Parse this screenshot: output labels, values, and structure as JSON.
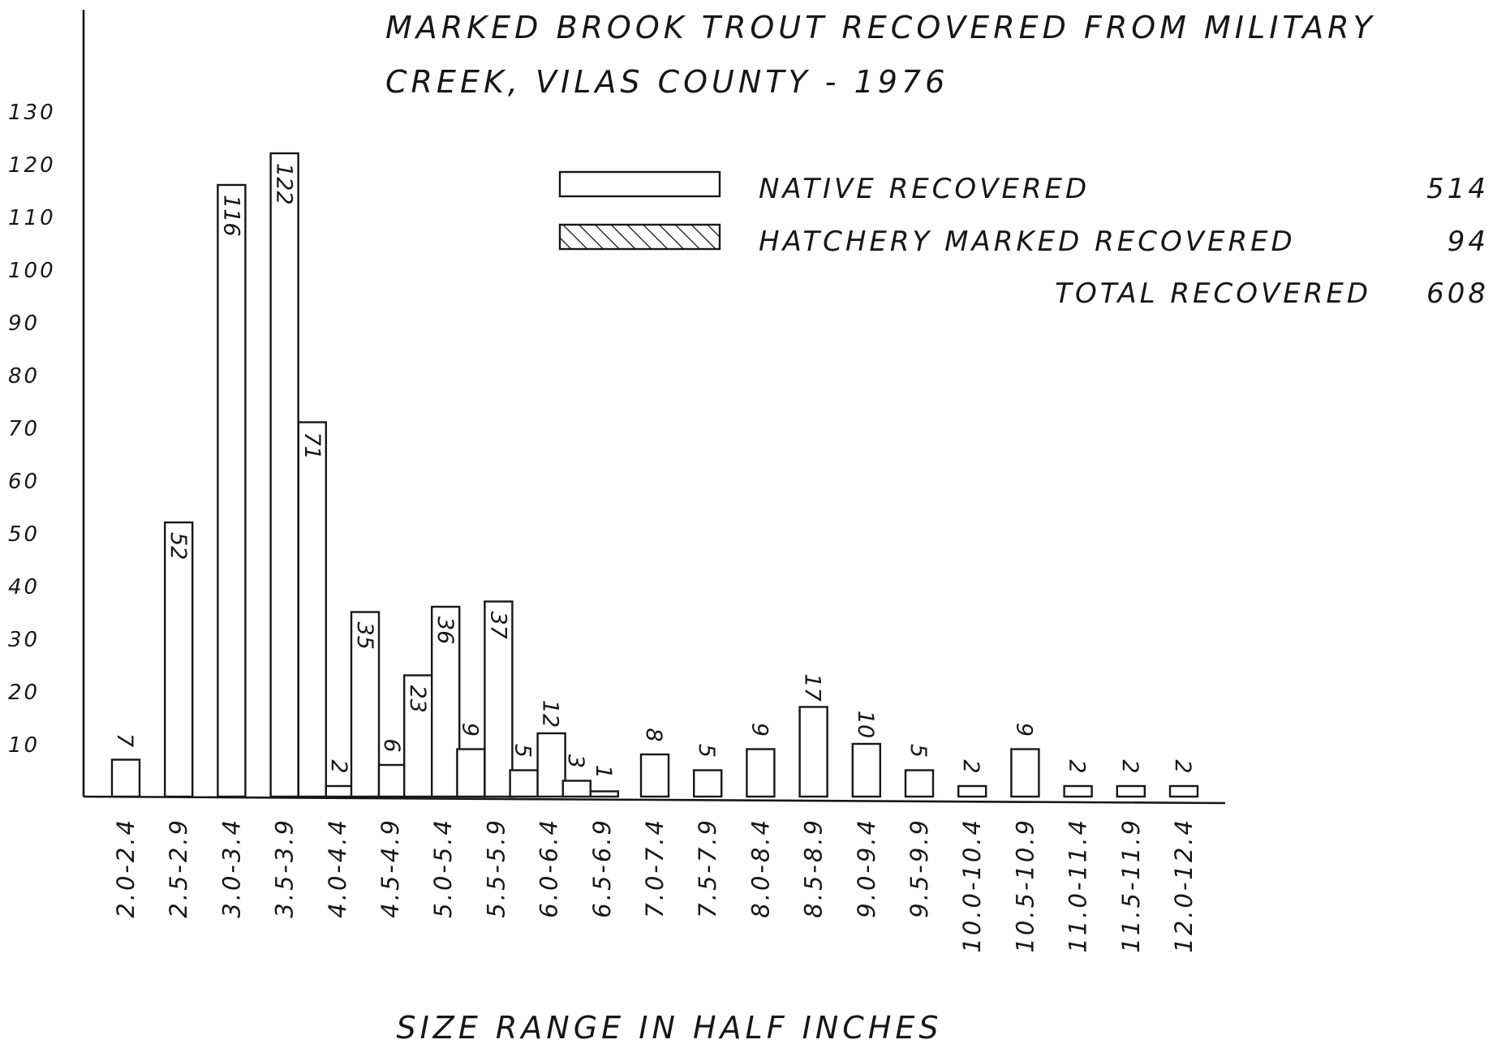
{
  "chart_data": {
    "type": "bar",
    "title_line1": "MARKED BROOK TROUT RECOVERED FROM MILITARY",
    "title_line2": "CREEK, VILAS COUNTY - 1976",
    "xlabel": "SIZE RANGE IN HALF INCHES",
    "ylabel": "",
    "ylim": [
      0,
      130
    ],
    "y_ticks": [
      "10",
      "20",
      "30",
      "40",
      "50",
      "60",
      "70",
      "80",
      "90",
      "100",
      "110",
      "120",
      "130"
    ],
    "categories": [
      "2.0-2.4",
      "2.5-2.9",
      "3.0-3.4",
      "3.5-3.9",
      "4.0-4.4",
      "4.5-4.9",
      "5.0-5.4",
      "5.5-5.9",
      "6.0-6.4",
      "6.5-6.9",
      "7.0-7.4",
      "7.5-7.9",
      "8.0-8.4",
      "8.5-8.9",
      "9.0-9.4",
      "9.5-9.9",
      "10.0-10.4",
      "10.5-10.9",
      "11.0-11.4",
      "11.5-11.9",
      "12.0-12.4"
    ],
    "series": [
      {
        "name": "NATIVE RECOVERED",
        "total": "514",
        "pattern": "plain",
        "values": [
          7,
          52,
          116,
          122,
          71,
          35,
          23,
          9,
          5,
          3,
          8,
          5,
          9,
          17,
          10,
          5,
          2,
          9,
          2,
          2,
          2
        ]
      },
      {
        "name": "HATCHERY MARKED RECOVERED",
        "total": "94",
        "pattern": "hatched",
        "values": [
          null,
          null,
          null,
          null,
          2,
          6,
          36,
          37,
          12,
          1,
          null,
          null,
          null,
          null,
          null,
          null,
          null,
          null,
          null,
          null,
          null
        ]
      }
    ],
    "total_label": "TOTAL RECOVERED",
    "total_value": "608",
    "grid": false,
    "legend_position": "top-right",
    "colors": {
      "ink": "#161616",
      "paper": "#ffffff"
    }
  }
}
